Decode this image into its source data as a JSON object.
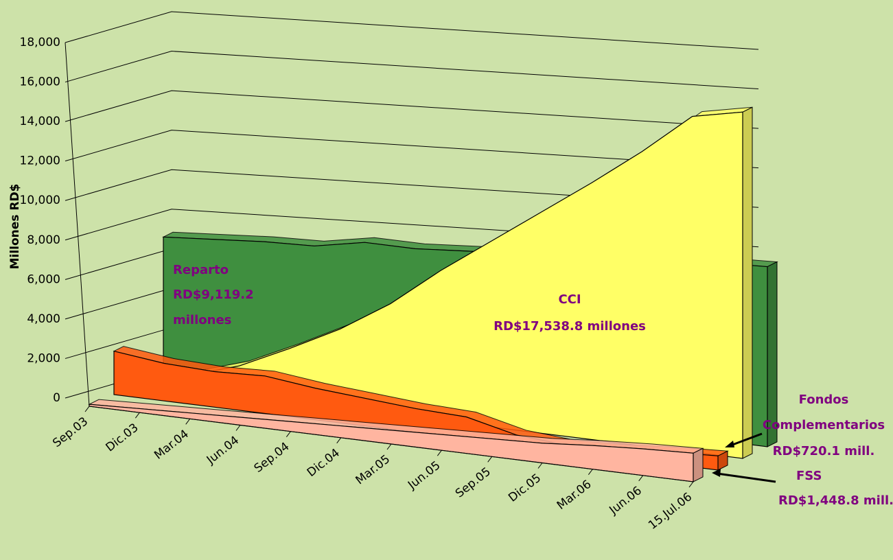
{
  "chart_data": {
    "type": "area3d",
    "y_axis_label": "Millones RD$",
    "categories": [
      "Sep.03",
      "Dic.03",
      "Mar.04",
      "Jun.04",
      "Sep.04",
      "Dic.04",
      "Mar.05",
      "Jun.05",
      "Sep.05",
      "Dic.05",
      "Mar.06",
      "Jun.06",
      "15.Jul.06"
    ],
    "series": [
      {
        "name": "Reparto",
        "color": "#3f8f3f",
        "values": [
          6800,
          7000,
          7200,
          7300,
          7800,
          7800,
          8000,
          8200,
          8400,
          8600,
          8800,
          9000,
          9119.2
        ]
      },
      {
        "name": "CCI",
        "color": "#ffff66",
        "values": [
          200,
          700,
          1500,
          2700,
          4000,
          5600,
          7600,
          9400,
          11200,
          13000,
          14900,
          17000,
          17538.8
        ]
      },
      {
        "name": "Fondos Complementarios",
        "color": "#ff5a10",
        "values": [
          2200,
          1900,
          1800,
          1900,
          1600,
          1400,
          1200,
          1100,
          500,
          300,
          400,
          600,
          720.1
        ]
      },
      {
        "name": "FSS",
        "color": "#ffb5a0",
        "values": [
          100,
          200,
          300,
          400,
          500,
          600,
          700,
          800,
          900,
          1000,
          1200,
          1350,
          1448.8
        ]
      }
    ],
    "annotations": [
      "Reparto",
      "RD$9,119.2",
      "millones",
      "CCI",
      "RD$17,538.8 millones",
      "Fondos",
      "Complementarios",
      "RD$720.1 mill.",
      "FSS",
      "RD$1,448.8 mill."
    ],
    "ylim": [
      0,
      18000
    ],
    "yticks": [
      0,
      {
        "value": 2000,
        "label": "2,000"
      },
      {
        "value": 4000,
        "label": "4,000"
      },
      {
        "value": 6000,
        "label": "6,000"
      },
      {
        "value": 8000,
        "label": "8,000"
      },
      {
        "value": 10000,
        "label": "10,000"
      },
      {
        "value": 12000,
        "label": "12,000"
      },
      {
        "value": 14000,
        "label": "14,000"
      },
      {
        "value": 16000,
        "label": "16,000"
      },
      {
        "value": 18000,
        "label": "18,000"
      }
    ],
    "grid": true
  }
}
